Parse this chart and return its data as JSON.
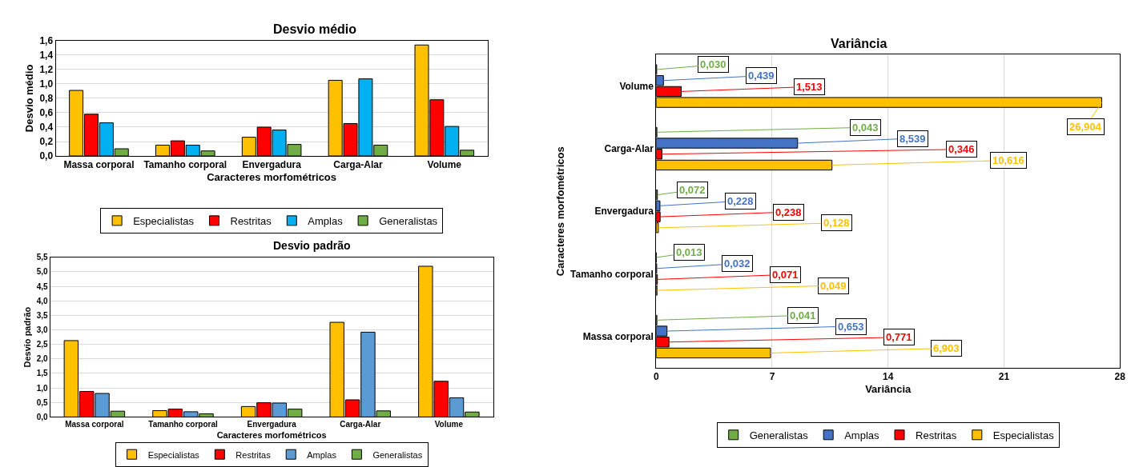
{
  "chart_data": [
    {
      "type": "bar",
      "title": "Desvio médio",
      "xlabel": "Caracteres morfométricos",
      "ylabel": "Desvio médio",
      "categories": [
        "Massa corporal",
        "Tamanho corporal",
        "Envergadura",
        "Carga-Alar",
        "Volume"
      ],
      "series": [
        {
          "name": "Especialistas",
          "color": "#ffc000",
          "values": [
            0.91,
            0.15,
            0.26,
            1.05,
            1.54
          ]
        },
        {
          "name": "Restritas",
          "color": "#ff0000",
          "values": [
            0.58,
            0.21,
            0.4,
            0.45,
            0.78
          ]
        },
        {
          "name": "Amplas",
          "color": "#00b0f0",
          "values": [
            0.46,
            0.15,
            0.36,
            1.07,
            0.41
          ]
        },
        {
          "name": "Generalistas",
          "color": "#70ad47",
          "values": [
            0.1,
            0.07,
            0.16,
            0.15,
            0.08
          ]
        }
      ],
      "ylim": [
        0,
        1.6
      ],
      "yticks": [
        {
          "value": 0,
          "label": "0,0"
        },
        {
          "value": 0.2,
          "label": "0,2"
        },
        {
          "value": 0.4,
          "label": "0,4"
        },
        {
          "value": 0.6,
          "label": "0,6"
        },
        {
          "value": 0.8,
          "label": "0,8"
        },
        {
          "value": 1.0,
          "label": "1,0"
        },
        {
          "value": 1.2,
          "label": "1,2"
        },
        {
          "value": 1.4,
          "label": "1,4"
        },
        {
          "value": 1.6,
          "label": "1,6"
        }
      ],
      "grid": "y",
      "legend": "bottom"
    },
    {
      "type": "bar",
      "title": "Desvio padrão",
      "xlabel": "Caracteres morfométricos",
      "ylabel": "Desvio padrão",
      "categories": [
        "Massa corporal",
        "Tamanho corporal",
        "Envergadura",
        "Carga-Alar",
        "Volume"
      ],
      "series": [
        {
          "name": "Especialistas",
          "color": "#ffc000",
          "values": [
            2.63,
            0.22,
            0.36,
            3.26,
            5.19
          ]
        },
        {
          "name": "Restritas",
          "color": "#ff0000",
          "values": [
            0.88,
            0.27,
            0.49,
            0.59,
            1.23
          ]
        },
        {
          "name": "Amplas",
          "color": "#5b9bd5",
          "values": [
            0.81,
            0.18,
            0.48,
            2.92,
            0.66
          ]
        },
        {
          "name": "Generalistas",
          "color": "#70ad47",
          "values": [
            0.2,
            0.11,
            0.27,
            0.21,
            0.17
          ]
        }
      ],
      "ylim": [
        0,
        5.5
      ],
      "yticks": [
        {
          "value": 0,
          "label": "0,0"
        },
        {
          "value": 0.5,
          "label": "0,5"
        },
        {
          "value": 1.0,
          "label": "1,0"
        },
        {
          "value": 1.5,
          "label": "1,5"
        },
        {
          "value": 2.0,
          "label": "2,0"
        },
        {
          "value": 2.5,
          "label": "2,5"
        },
        {
          "value": 3.0,
          "label": "3,0"
        },
        {
          "value": 3.5,
          "label": "3,5"
        },
        {
          "value": 4.0,
          "label": "4,0"
        },
        {
          "value": 4.5,
          "label": "4,5"
        },
        {
          "value": 5.0,
          "label": "5,0"
        },
        {
          "value": 5.5,
          "label": "5,5"
        }
      ],
      "grid": "y",
      "legend": "bottom"
    },
    {
      "type": "bar",
      "orientation": "horizontal",
      "title": "Variância",
      "xlabel": "Variância",
      "ylabel": "Caracteres morfométricos",
      "categories": [
        "Volume",
        "Carga-Alar",
        "Envergadura",
        "Tamanho corporal",
        "Massa corporal"
      ],
      "series": [
        {
          "name": "Generalistas",
          "color": "#70ad47",
          "values": [
            0.03,
            0.043,
            0.072,
            0.013,
            0.041
          ],
          "value_labels": [
            "0,030",
            "0,043",
            "0,072",
            "0,013",
            "0,041"
          ]
        },
        {
          "name": "Amplas",
          "color": "#4472c4",
          "values": [
            0.439,
            8.539,
            0.228,
            0.032,
            0.653
          ],
          "value_labels": [
            "0,439",
            "8,539",
            "0,228",
            "0,032",
            "0,653"
          ]
        },
        {
          "name": "Restritas",
          "color": "#ff0000",
          "values": [
            1.513,
            0.346,
            0.238,
            0.071,
            0.771
          ],
          "value_labels": [
            "1,513",
            "0,346",
            "0,238",
            "0,071",
            "0,771"
          ]
        },
        {
          "name": "Especialistas",
          "color": "#ffc000",
          "values": [
            26.904,
            10.616,
            0.128,
            0.049,
            6.903
          ],
          "value_labels": [
            "26,904",
            "10,616",
            "0,128",
            "0,049",
            "6,903"
          ]
        }
      ],
      "xlim": [
        0,
        28
      ],
      "xticks": [
        0,
        7,
        14,
        21,
        28
      ],
      "grid": "x",
      "legend": "bottom"
    }
  ]
}
